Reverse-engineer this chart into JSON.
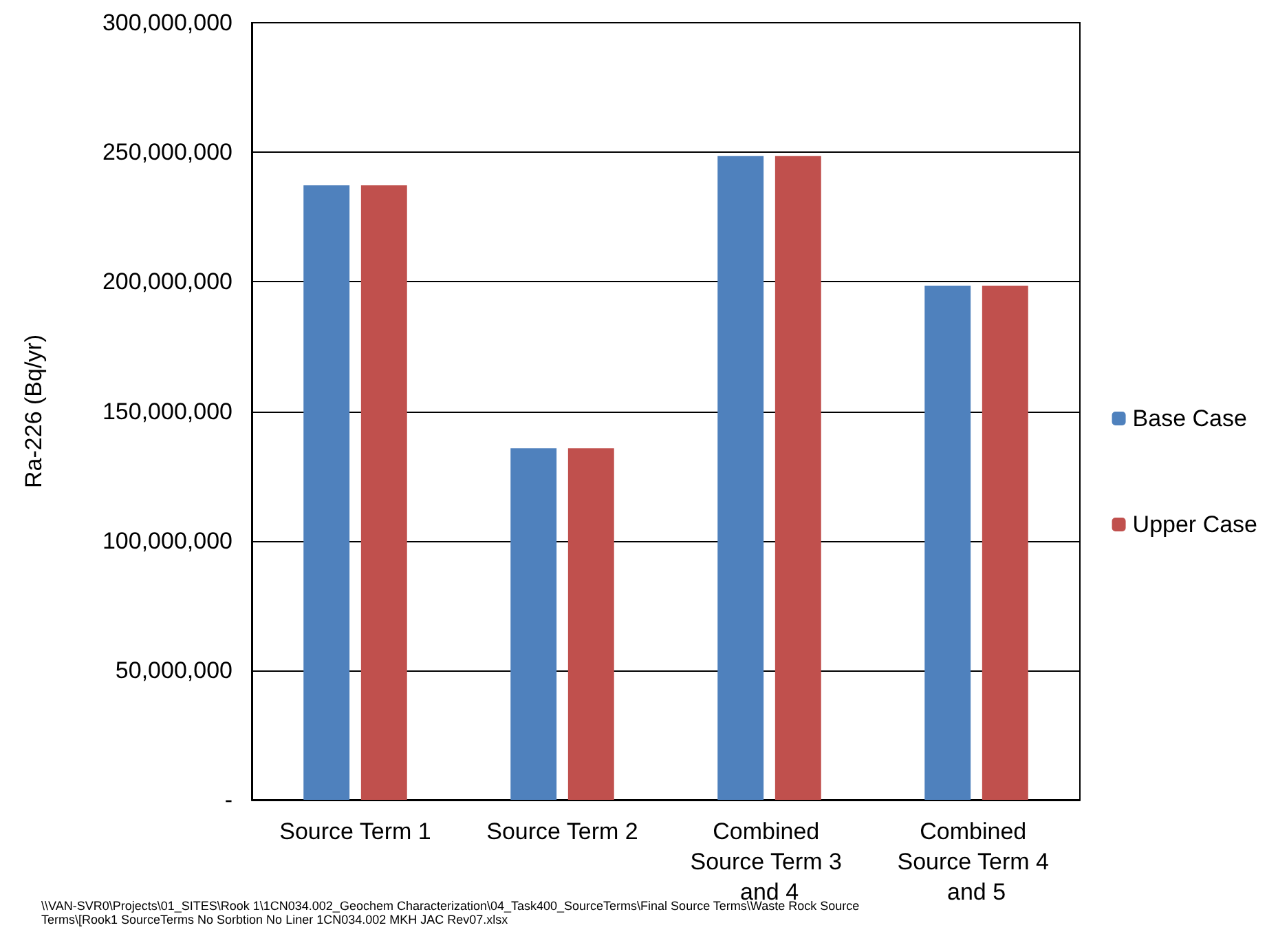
{
  "chart_data": {
    "type": "bar",
    "ylabel": "Ra-226 (Bq/yr)",
    "categories": [
      "Source Term 1",
      "Source Term 2",
      "Combined Source Term 3 and 4",
      "Combined Source Term 4 and 5"
    ],
    "series": [
      {
        "name": "Base Case",
        "color": "#4f81bd",
        "values": [
          237200000,
          135700000,
          248500000,
          198500000
        ]
      },
      {
        "name": "Upper Case",
        "color": "#c0504d",
        "values": [
          237200000,
          135700000,
          248500000,
          198500000
        ]
      }
    ],
    "ylim": [
      0,
      300000000
    ],
    "yticks": [
      {
        "value": 0,
        "label": "-"
      },
      {
        "value": 50000000,
        "label": "50,000,000"
      },
      {
        "value": 100000000,
        "label": "100,000,000"
      },
      {
        "value": 150000000,
        "label": "150,000,000"
      },
      {
        "value": 200000000,
        "label": "200,000,000"
      },
      {
        "value": 250000000,
        "label": "250,000,000"
      },
      {
        "value": 300000000,
        "label": "300,000,000"
      }
    ],
    "grid": "y",
    "legend": "right",
    "annotations": [
      "\\\\VAN-SVR0\\Projects\\01_SITES\\Rook 1\\1CN034.002_Geochem Characterization\\04_Task400_SourceTerms\\Final Source Terms\\Waste Rock Source Terms\\[Rook1 SourceTerms No Sorbtion No Liner 1CN034.002 MKH JAC Rev07.xlsx"
    ]
  }
}
